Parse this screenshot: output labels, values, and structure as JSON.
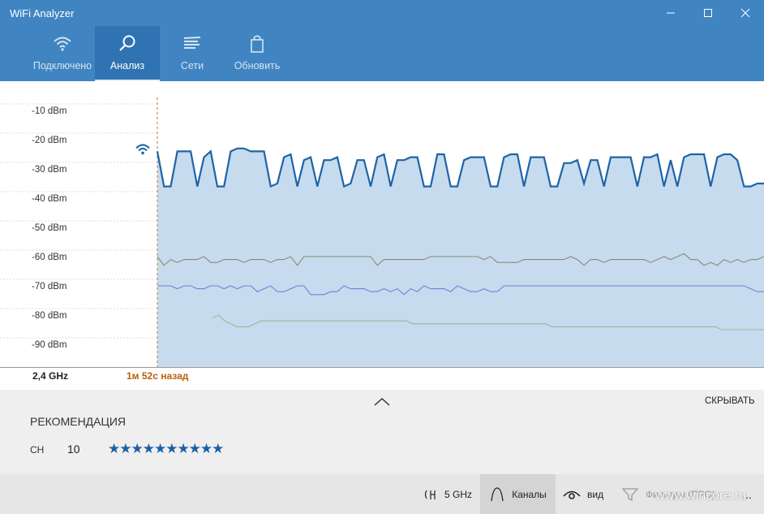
{
  "window": {
    "title": "WiFi Analyzer"
  },
  "nav": {
    "tabs": [
      {
        "label": "Подключено",
        "icon": "wifi-icon"
      },
      {
        "label": "Анализ",
        "icon": "magnifier-icon"
      },
      {
        "label": "Сети",
        "icon": "list-icon"
      },
      {
        "label": "Обновить",
        "icon": "bag-icon"
      }
    ],
    "active": "Анализ"
  },
  "chart_data": {
    "type": "line",
    "title": "",
    "xlabel": "",
    "ylabel": "",
    "yticks": [
      "-10 dBm",
      "-20 dBm",
      "-30 dBm",
      "-40 dBm",
      "-50 dBm",
      "-60 dBm",
      "-70 dBm",
      "-80 dBm",
      "-90 dBm"
    ],
    "ylim": [
      -97,
      0
    ],
    "x_marker_label": "1м 52с назад",
    "band_label": "2,4 GHz",
    "series": [
      {
        "color": "#1e64a8",
        "fill": true,
        "values": [
          -24,
          -36,
          -36,
          -24,
          -24,
          -24,
          -36,
          -26,
          -24,
          -36,
          -36,
          -24,
          -23,
          -23,
          -24,
          -24,
          -24,
          -36,
          -35,
          -26,
          -25,
          -36,
          -27,
          -26,
          -36,
          -27,
          -27,
          -26,
          -36,
          -35,
          -27,
          -27,
          -36,
          -26,
          -25,
          -36,
          -27,
          -27,
          -26,
          -26,
          -36,
          -36,
          -25,
          -25,
          -36,
          -36,
          -27,
          -26,
          -26,
          -26,
          -36,
          -36,
          -26,
          -25,
          -25,
          -36,
          -26,
          -26,
          -26,
          -36,
          -36,
          -28,
          -28,
          -27,
          -35,
          -27,
          -27,
          -36,
          -26,
          -26,
          -26,
          -26,
          -36,
          -26,
          -26,
          -25,
          -36,
          -27,
          -36,
          -26,
          -25,
          -25,
          -25,
          -36,
          -26,
          -25,
          -25,
          -27,
          -36,
          -36,
          -35,
          -35
        ]
      },
      {
        "color": "#8a8a7a",
        "fill": false,
        "values": [
          -60,
          -63,
          -61,
          -62,
          -61,
          -61,
          -61,
          -60,
          -62,
          -62,
          -61,
          -61,
          -61,
          -62,
          -61,
          -61,
          -61,
          -62,
          -61,
          -61,
          -60,
          -63,
          -60,
          -60,
          -60,
          -60,
          -60,
          -60,
          -60,
          -60,
          -60,
          -60,
          -60,
          -63,
          -61,
          -61,
          -61,
          -61,
          -61,
          -61,
          -61,
          -60,
          -60,
          -60,
          -60,
          -60,
          -60,
          -60,
          -60,
          -61,
          -60,
          -62,
          -62,
          -62,
          -62,
          -61,
          -61,
          -61,
          -61,
          -61,
          -61,
          -61,
          -60,
          -61,
          -63,
          -61,
          -61,
          -62,
          -61,
          -61,
          -61,
          -61,
          -61,
          -61,
          -62,
          -61,
          -60,
          -61,
          -60,
          -59,
          -61,
          -61,
          -63,
          -62,
          -63,
          -61,
          -62,
          -61,
          -62,
          -61,
          -61,
          -60
        ]
      },
      {
        "color": "#7a7adc",
        "fill": false,
        "values": [
          -70,
          -70,
          -70,
          -71,
          -70,
          -70,
          -71,
          -71,
          -70,
          -70,
          -71,
          -70,
          -71,
          -70,
          -70,
          -72,
          -71,
          -70,
          -72,
          -72,
          -71,
          -70,
          -70,
          -73,
          -73,
          -73,
          -72,
          -72,
          -70,
          -71,
          -71,
          -71,
          -72,
          -72,
          -71,
          -72,
          -71,
          -73,
          -71,
          -72,
          -70,
          -71,
          -71,
          -71,
          -72,
          -70,
          -71,
          -72,
          -72,
          -71,
          -72,
          -72,
          -70,
          -70,
          -70,
          -70,
          -70,
          -70,
          -70,
          -70,
          -70,
          -70,
          -70,
          -70,
          -70,
          -70,
          -70,
          -70,
          -70,
          -70,
          -70,
          -70,
          -70,
          -70,
          -70,
          -70,
          -70,
          -70,
          -70,
          -70,
          -70,
          -70,
          -70,
          -70,
          -70,
          -70,
          -70,
          -70,
          -70,
          -71,
          -72,
          -72
        ]
      },
      {
        "color": "#a8b09a",
        "fill": false,
        "values": [
          -81,
          -80,
          -82,
          -83,
          -84,
          -84,
          -84,
          -83,
          -82,
          -82,
          -82,
          -82,
          -82,
          -82,
          -82,
          -82,
          -82,
          -82,
          -82,
          -82,
          -82,
          -82,
          -82,
          -82,
          -82,
          -82,
          -82,
          -82,
          -82,
          -82,
          -82,
          -82,
          -82,
          -83,
          -83,
          -83,
          -83,
          -83,
          -83,
          -83,
          -83,
          -83,
          -83,
          -83,
          -83,
          -83,
          -83,
          -83,
          -83,
          -83,
          -83,
          -83,
          -83,
          -83,
          -83,
          -83,
          -84,
          -84,
          -84,
          -84,
          -84,
          -84,
          -84,
          -84,
          -84,
          -84,
          -84,
          -84,
          -84,
          -84,
          -84,
          -84,
          -84,
          -84,
          -84,
          -84,
          -84,
          -84,
          -84,
          -84,
          -84,
          -84,
          -84,
          -84,
          -85,
          -85,
          -85,
          -85,
          -85,
          -85,
          -85,
          -85
        ]
      }
    ]
  },
  "panel": {
    "hide_label": "СКРЫВАТЬ",
    "recommendation_title": "РЕКОМЕНДАЦИЯ",
    "channel_label": "CH",
    "channel_value": "10",
    "stars": "★★★★★★★★★★"
  },
  "bottombar": {
    "band_label": "5 GHz",
    "channels_label": "Каналы",
    "view_label": "вид",
    "filters_label": "Фильтры (ПРО)",
    "more": "..."
  },
  "watermark": "www.wincore.ru",
  "colors": {
    "accent": "#4085c2",
    "active_tab": "#2f73b2",
    "star": "#1e5fa5",
    "time_label": "#b8600a"
  }
}
